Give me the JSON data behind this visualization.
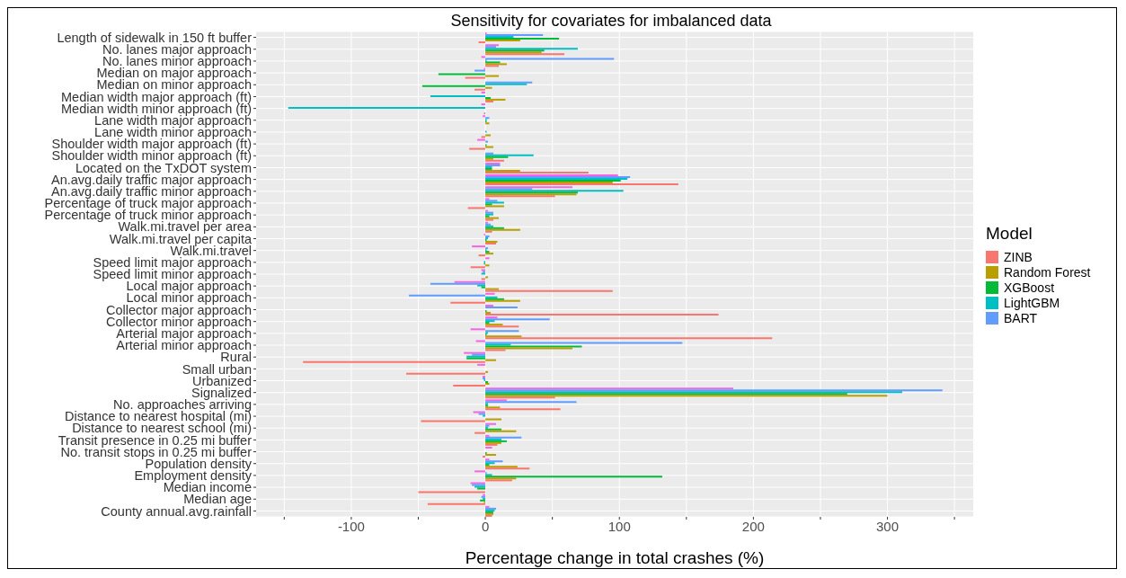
{
  "chart_data": {
    "type": "bar",
    "orientation": "horizontal",
    "title": "Sensitivity for covariates for imbalanced data",
    "xlabel": "Percentage change in total crashes (%)",
    "legend_title": "Model",
    "legend": "right",
    "grid": true,
    "xlim": [
      -171,
      364
    ],
    "xticks": [
      {
        "value": -150,
        "label": null
      },
      -100,
      {
        "value": -50,
        "label": null
      },
      0,
      {
        "value": 50,
        "label": null
      },
      100,
      {
        "value": 150,
        "label": null
      },
      200,
      {
        "value": 250,
        "label": null
      },
      300,
      {
        "value": 350,
        "label": null
      }
    ],
    "categories": [
      "Length of sidewalk in 150 ft buffer",
      "No. lanes major approach",
      "No. lanes minor approach",
      "Median on major approach",
      "Median on minor approach",
      "Median width major approach (ft)",
      "Median width minor approach (ft)",
      "Lane width major approach",
      "Lane width minor approach",
      "Shoulder width major approach (ft)",
      "Shoulder width minor approach (ft)",
      "Located on the TxDOT system",
      "An.avg.daily traffic major approach",
      "An.avg.daily traffic minor approach",
      "Percentage of truck major approach",
      "Percentage of truck minor approach",
      "Walk.mi.travel per area",
      "Walk.mi.travel per capita",
      "Walk.mi.travel",
      "Speed limit major approach",
      "Speed limit minor approach",
      "Local major approach",
      "Local minor approach",
      "Collector major approach",
      "Collector minor approach",
      "Arterial major approach",
      "Arterial minor approach",
      "Rural",
      "Small urban",
      "Urbanized",
      "Signalized",
      "No. approaches arriving",
      "Distance to nearest hospital (mi)",
      "Distance to nearest school (mi)",
      "Transit presence in 0.25 mi buffer",
      "No. transit stops in 0.25 mi buffer",
      "Population density",
      "Employment density",
      "Median income",
      "Median age",
      "County annual.avg.rainfall"
    ],
    "series": [
      {
        "name": "ZINB",
        "color": "#f8766d",
        "values": [
          -5,
          59,
          10,
          -15,
          -8,
          6,
          -1,
          0,
          -3,
          -12,
          14,
          77,
          144,
          52,
          -13,
          6,
          5,
          8,
          -5,
          -11,
          -3,
          95,
          -26,
          174,
          25,
          214,
          15,
          -136,
          -59,
          -24,
          52,
          56,
          -48,
          -8,
          9,
          -2,
          33,
          20,
          -50,
          -43,
          5
        ]
      },
      {
        "name": "Random Forest",
        "color": "#b79f00",
        "values": [
          26,
          42,
          16,
          10,
          5,
          15,
          0,
          3,
          4,
          6,
          6,
          26,
          95,
          68,
          14,
          10,
          26,
          9,
          6,
          3,
          2,
          10,
          26,
          4,
          13,
          27,
          65,
          8,
          2,
          3,
          300,
          11,
          12,
          23,
          12,
          8,
          24,
          23,
          0,
          -1,
          6
        ]
      },
      {
        "name": "XGBoost",
        "color": "#00ba38",
        "values": [
          55,
          44,
          11,
          -35,
          -47,
          4,
          0,
          1,
          0,
          1,
          17,
          5,
          101,
          69,
          5,
          3,
          14,
          1,
          3,
          -1,
          0,
          -3,
          14,
          1,
          3,
          1,
          72,
          -14,
          0,
          2,
          270,
          2,
          0,
          12,
          16,
          1,
          3,
          132,
          -6,
          -4,
          6
        ]
      },
      {
        "name": "LightGBM",
        "color": "#00bfc4",
        "values": [
          21,
          69,
          1,
          0,
          31,
          -41,
          -147,
          1,
          1,
          0,
          36,
          5,
          106,
          103,
          14,
          6,
          6,
          2,
          1,
          -1,
          -3,
          -6,
          9,
          0,
          7,
          2,
          19,
          -14,
          0,
          -1,
          311,
          2,
          -2,
          2,
          12,
          0,
          7,
          5,
          -8,
          -2,
          7
        ]
      },
      {
        "name": "BART",
        "color": "#619cff",
        "values": [
          43,
          8,
          96,
          -8,
          35,
          0,
          0,
          3,
          0,
          2,
          6,
          11,
          108,
          35,
          9,
          6,
          4,
          3,
          2,
          0,
          -2,
          -41,
          -57,
          24,
          48,
          25,
          147,
          -10,
          0,
          -2,
          341,
          68,
          -5,
          3,
          27,
          0,
          13,
          1,
          -10,
          -3,
          8
        ]
      },
      {
        "color": "#f564e3",
        "values": [
          1,
          10,
          -3,
          -1,
          0,
          -3,
          -3,
          -2,
          0,
          -6,
          0,
          11,
          99,
          65,
          3,
          2,
          2,
          -1,
          -10,
          3,
          -3,
          -23,
          7,
          6,
          9,
          -11,
          -7,
          -16,
          -6,
          -2,
          185,
          16,
          -9,
          8,
          3,
          5,
          3,
          -8,
          -11,
          -2,
          3
        ]
      }
    ]
  }
}
